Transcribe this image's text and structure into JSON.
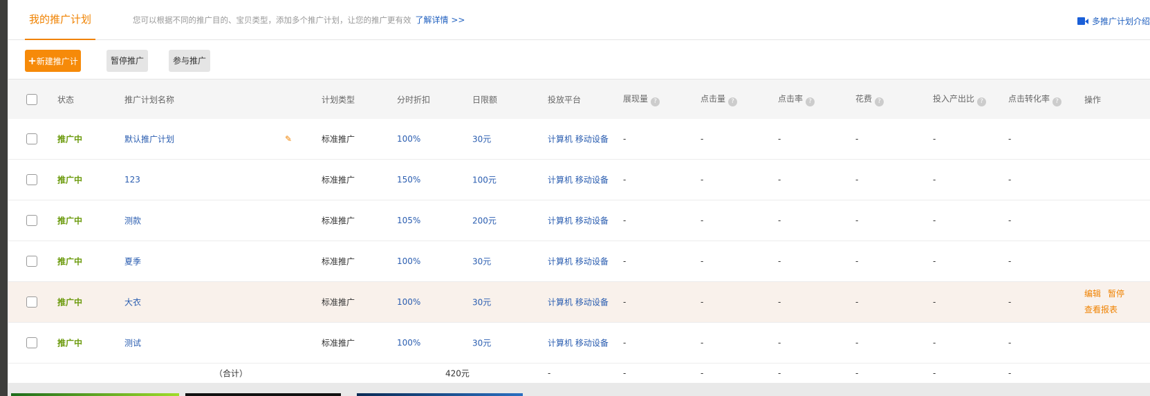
{
  "tabs": {
    "active": "我的推广计划",
    "tip": "您可以根据不同的推广目的、宝贝类型，添加多个推广计划，让您的推广更有效",
    "learn_more": "了解详情 >>",
    "intro": "多推广计划介绍"
  },
  "toolbar": {
    "new": "新建推广计划",
    "pause": "暂停推广",
    "join": "参与推广"
  },
  "columns": [
    "状态",
    "推广计划名称",
    "计划类型",
    "分时折扣",
    "日限额",
    "投放平台",
    "展现量",
    "点击量",
    "点击率",
    "花费",
    "投入产出比",
    "点击转化率",
    "操作"
  ],
  "rows": [
    {
      "status": "推广中",
      "name": "默认推广计划",
      "type": "标准推广",
      "discount": "100%",
      "limit": "30元",
      "platform": "计算机 移动设备",
      "m": [
        "-",
        "-",
        "-",
        "-",
        "-",
        "-"
      ]
    },
    {
      "status": "推广中",
      "name": "123",
      "type": "标准推广",
      "discount": "150%",
      "limit": "100元",
      "platform": "计算机 移动设备",
      "m": [
        "-",
        "-",
        "-",
        "-",
        "-",
        "-"
      ]
    },
    {
      "status": "推广中",
      "name": "测款",
      "type": "标准推广",
      "discount": "105%",
      "limit": "200元",
      "platform": "计算机 移动设备",
      "m": [
        "-",
        "-",
        "-",
        "-",
        "-",
        "-"
      ]
    },
    {
      "status": "推广中",
      "name": "夏季",
      "type": "标准推广",
      "discount": "100%",
      "limit": "30元",
      "platform": "计算机 移动设备",
      "m": [
        "-",
        "-",
        "-",
        "-",
        "-",
        "-"
      ]
    },
    {
      "status": "推广中",
      "name": "大衣",
      "type": "标准推广",
      "discount": "100%",
      "limit": "30元",
      "platform": "计算机 移动设备",
      "m": [
        "-",
        "-",
        "-",
        "-",
        "-",
        "-"
      ]
    },
    {
      "status": "推广中",
      "name": "测试",
      "type": "标准推广",
      "discount": "100%",
      "limit": "30元",
      "platform": "计算机 移动设备",
      "m": [
        "-",
        "-",
        "-",
        "-",
        "-",
        "-"
      ]
    }
  ],
  "actions": {
    "edit": "编辑",
    "pause": "暂停",
    "report": "查看报表"
  },
  "total": {
    "label": "（合计）",
    "limit": "420元",
    "m": [
      "-",
      "-",
      "-",
      "-",
      "-",
      "-",
      "-"
    ]
  },
  "colors": {
    "accent": "#f08200",
    "link": "#2a5db0",
    "status": "#6b9a0c",
    "hover_row": "#f9f1eb"
  }
}
